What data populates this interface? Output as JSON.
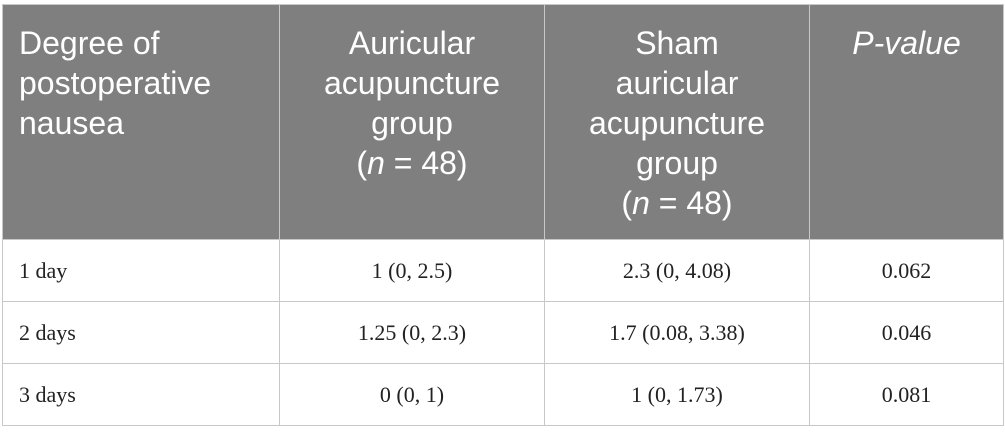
{
  "table": {
    "header": [
      {
        "label": "Degree of postoperative nausea"
      },
      {
        "label": "Auricular acupuncture group",
        "n_open": "(",
        "n_symbol": "n",
        "n_rest": " = 48)"
      },
      {
        "label": "Sham auricular acupuncture group",
        "n_open": "(",
        "n_symbol": "n",
        "n_rest": " = 48)"
      },
      {
        "label": "P-value"
      }
    ],
    "rows": [
      [
        "1 day",
        "1 (0, 2.5)",
        "2.3 (0, 4.08)",
        "0.062"
      ],
      [
        "2 days",
        "1.25 (0, 2.3)",
        "1.7 (0.08, 3.38)",
        "0.046"
      ],
      [
        "3 days",
        "0 (0, 1)",
        "1 (0, 1.73)",
        "0.081"
      ]
    ]
  }
}
